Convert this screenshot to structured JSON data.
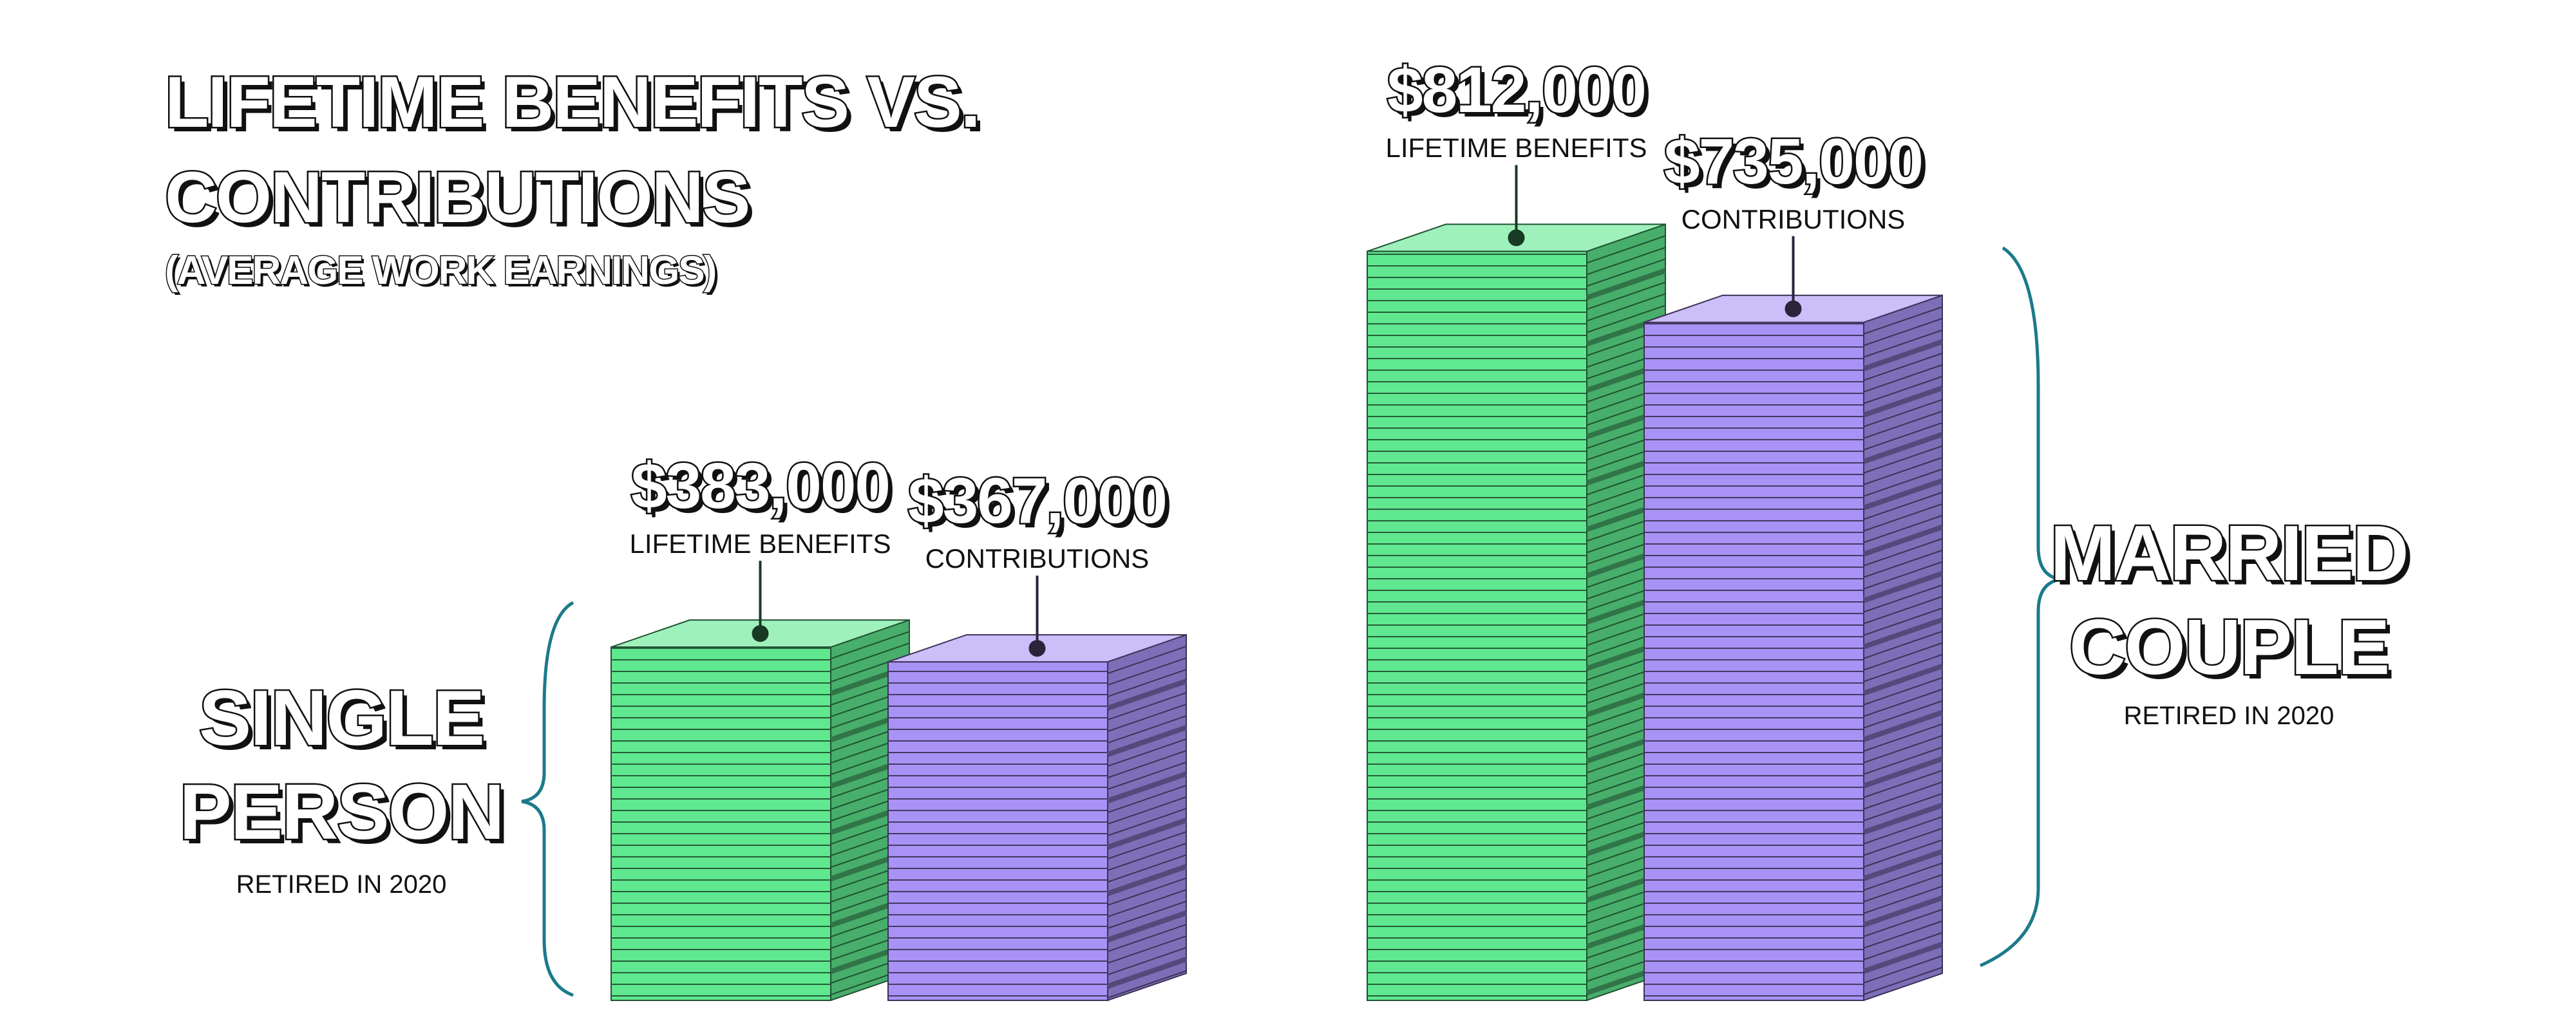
{
  "chart_data": {
    "type": "bar3d",
    "title": "LIFETIME BENEFITS VS. CONTRIBUTIONS",
    "subtitle": "(AVERAGE WORK EARNINGS)",
    "categories": [
      "SINGLE PERSON",
      "MARRIED COUPLE"
    ],
    "category_notes": [
      "RETIRED IN 2020",
      "RETIRED IN 2020"
    ],
    "series": [
      {
        "name": "LIFETIME BENEFITS",
        "color": "#5fe88f",
        "values": [
          383000,
          812000
        ],
        "value_labels": [
          "$383,000",
          "$812,000"
        ]
      },
      {
        "name": "CONTRIBUTIONS",
        "color": "#a892f5",
        "values": [
          367000,
          735000
        ],
        "value_labels": [
          "$367,000",
          "$735,000"
        ]
      }
    ]
  }
}
